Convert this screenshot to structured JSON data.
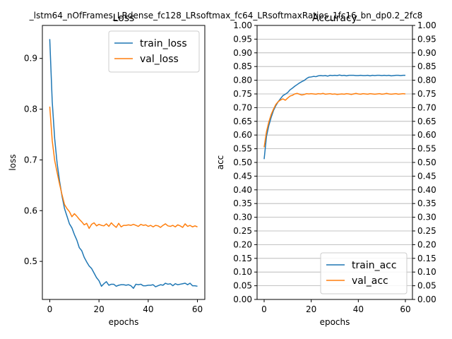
{
  "figure": {
    "suptitle": "_lstm64_nOfFrames_LRdense_fc128_LRsoftmax_fc64_LRsoftmaxRatios_1fc16_bn_dp0.2_2fc8"
  },
  "chart_data": [
    {
      "type": "line",
      "title": "Loss",
      "xlabel": "epochs",
      "ylabel": "loss",
      "xlim": [
        -3,
        63
      ],
      "ylim": [
        0.425,
        0.965
      ],
      "xticks": [
        "0",
        "20",
        "40",
        "60"
      ],
      "yticks": [
        "0.5",
        "0.6",
        "0.7",
        "0.8",
        "0.9"
      ],
      "grid": false,
      "legend": "top-right",
      "series": [
        {
          "name": "train_loss",
          "color": "#1f77b4",
          "values": [
            0.938,
            0.815,
            0.742,
            0.693,
            0.658,
            0.628,
            0.604,
            0.589,
            0.574,
            0.566,
            0.553,
            0.542,
            0.527,
            0.521,
            0.508,
            0.499,
            0.491,
            0.486,
            0.477,
            0.468,
            0.462,
            0.451,
            0.456,
            0.46,
            0.453,
            0.455,
            0.455,
            0.451,
            0.453,
            0.454,
            0.454,
            0.453,
            0.454,
            0.452,
            0.447,
            0.455,
            0.454,
            0.455,
            0.452,
            0.452,
            0.453,
            0.453,
            0.454,
            0.45,
            0.452,
            0.454,
            0.453,
            0.457,
            0.455,
            0.456,
            0.452,
            0.456,
            0.454,
            0.455,
            0.456,
            0.457,
            0.454,
            0.457,
            0.452,
            0.452,
            0.451
          ]
        },
        {
          "name": "val_loss",
          "color": "#ff7f0e",
          "values": [
            0.805,
            0.738,
            0.699,
            0.675,
            0.652,
            0.631,
            0.612,
            0.604,
            0.598,
            0.588,
            0.594,
            0.589,
            0.583,
            0.578,
            0.572,
            0.575,
            0.565,
            0.573,
            0.576,
            0.57,
            0.573,
            0.571,
            0.57,
            0.574,
            0.569,
            0.576,
            0.571,
            0.567,
            0.575,
            0.568,
            0.571,
            0.571,
            0.572,
            0.571,
            0.573,
            0.571,
            0.569,
            0.573,
            0.571,
            0.572,
            0.569,
            0.571,
            0.568,
            0.571,
            0.57,
            0.567,
            0.571,
            0.574,
            0.57,
            0.569,
            0.571,
            0.568,
            0.572,
            0.57,
            0.567,
            0.574,
            0.569,
            0.571,
            0.568,
            0.57,
            0.568
          ]
        }
      ]
    },
    {
      "type": "line",
      "title": "Accuracy",
      "xlabel": "epochs",
      "ylabel": "acc",
      "xlim": [
        -3,
        63
      ],
      "ylim": [
        0,
        1
      ],
      "xticks": [
        "0",
        "20",
        "40",
        "60"
      ],
      "yticks": [
        "0.00",
        "0.05",
        "0.10",
        "0.15",
        "0.20",
        "0.25",
        "0.30",
        "0.35",
        "0.40",
        "0.45",
        "0.50",
        "0.55",
        "0.60",
        "0.65",
        "0.70",
        "0.75",
        "0.80",
        "0.85",
        "0.90",
        "0.95",
        "1.00"
      ],
      "grid": "horizontal",
      "legend": "bottom-right",
      "series": [
        {
          "name": "train_acc",
          "color": "#1f77b4",
          "values": [
            0.512,
            0.595,
            0.635,
            0.665,
            0.69,
            0.708,
            0.722,
            0.733,
            0.744,
            0.749,
            0.755,
            0.765,
            0.771,
            0.778,
            0.784,
            0.79,
            0.795,
            0.799,
            0.806,
            0.811,
            0.812,
            0.814,
            0.813,
            0.816,
            0.817,
            0.816,
            0.817,
            0.815,
            0.818,
            0.817,
            0.818,
            0.817,
            0.819,
            0.817,
            0.818,
            0.816,
            0.818,
            0.818,
            0.818,
            0.817,
            0.817,
            0.818,
            0.817,
            0.817,
            0.818,
            0.816,
            0.818,
            0.817,
            0.818,
            0.818,
            0.817,
            0.818,
            0.817,
            0.818,
            0.816,
            0.817,
            0.818,
            0.818,
            0.817,
            0.818,
            0.818
          ]
        },
        {
          "name": "val_acc",
          "color": "#ff7f0e",
          "values": [
            0.555,
            0.612,
            0.648,
            0.675,
            0.695,
            0.712,
            0.722,
            0.728,
            0.732,
            0.727,
            0.735,
            0.742,
            0.745,
            0.75,
            0.752,
            0.749,
            0.746,
            0.748,
            0.751,
            0.75,
            0.751,
            0.75,
            0.749,
            0.751,
            0.75,
            0.752,
            0.749,
            0.75,
            0.751,
            0.749,
            0.75,
            0.748,
            0.749,
            0.75,
            0.749,
            0.751,
            0.75,
            0.748,
            0.75,
            0.752,
            0.75,
            0.749,
            0.751,
            0.75,
            0.749,
            0.751,
            0.75,
            0.749,
            0.75,
            0.751,
            0.749,
            0.75,
            0.752,
            0.75,
            0.749,
            0.75,
            0.751,
            0.749,
            0.75,
            0.751,
            0.75
          ]
        }
      ]
    }
  ]
}
